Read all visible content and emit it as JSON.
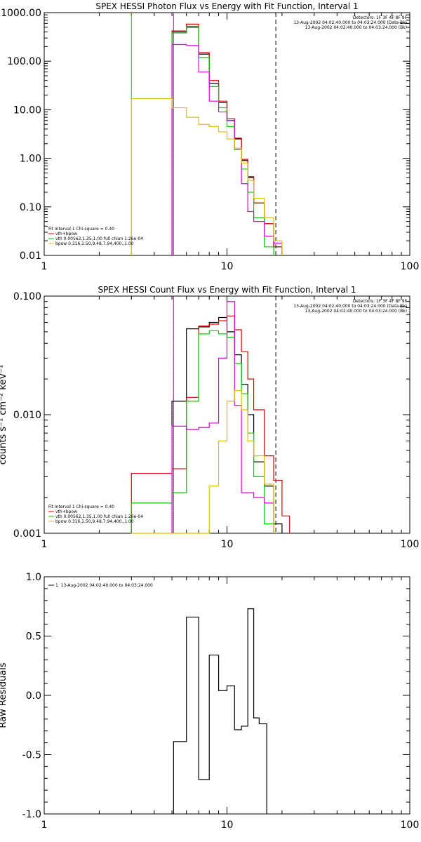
{
  "colors": {
    "data": "#000000",
    "total": "#e00000",
    "vth": "#00d000",
    "bpow": "#e0c000",
    "bkg": "#e000e0"
  },
  "chart_data": [
    {
      "type": "line",
      "step": true,
      "scale": "loglog",
      "title": "SPEX HESSI Photon Flux vs Energy with Fit Function, Interval 1",
      "xlim": [
        1,
        100
      ],
      "ylim": [
        0.01,
        1000
      ],
      "xticks": [
        1,
        10,
        100
      ],
      "xtick_labels": [
        "1",
        "10",
        "100"
      ],
      "yticks": [
        0.01,
        0.1,
        1,
        10,
        100,
        1000
      ],
      "ytick_labels": [
        "0.01",
        "0.10",
        "1.00",
        "10.00",
        "100.00",
        "1000.00"
      ],
      "info_lines": [
        "Detectors: 1F 3F 4F 8F 9F",
        "13-Aug-2002 04:02:40.000 to 04:03:24.000 (Data-Bk)",
        "13-Aug-2002 04:02:40.000 to 04:03:24.000 (Bk)"
      ],
      "legend_lines": [
        "Fit Interval 1    Chi-square = 0.40",
        "vth+bpow",
        "vth 0.00562,1.35,1.00  full chian 1.26e-04",
        "bpow 0.316,1.50,9.48,7.94,400.,1.00"
      ],
      "vlines": [
        {
          "x": 3,
          "color": "vth",
          "style": "solid"
        },
        {
          "x": 5.1,
          "color": "vth",
          "style": "dotted"
        },
        {
          "x": 5.1,
          "color": "bkg",
          "style": "solid"
        },
        {
          "x": 18.5,
          "color": "data",
          "style": "dashed"
        }
      ],
      "edges": [
        3,
        5,
        6,
        7,
        8,
        9,
        10,
        11,
        12,
        13,
        14,
        16,
        18,
        20,
        22
      ],
      "series": [
        {
          "color": "data",
          "start": 1,
          "values": [
            400,
            500,
            140,
            35,
            14,
            6,
            2.5,
            0.9,
            0.4,
            0.12,
            0.045,
            0.015
          ]
        },
        {
          "color": "total",
          "start": 1,
          "values": [
            420,
            580,
            150,
            40,
            15,
            6.5,
            2.6,
            0.95,
            0.42,
            0.12,
            0.045,
            0.015
          ]
        },
        {
          "color": "vth",
          "start": 1,
          "values": [
            380,
            520,
            120,
            30,
            11,
            4.5,
            1.5,
            0.6,
            0.2,
            0.06,
            0.015
          ]
        },
        {
          "color": "bkg",
          "start": 1,
          "values": [
            220,
            210,
            60,
            15,
            9,
            6,
            1.6,
            0.3,
            0.08,
            0.05,
            0.025,
            0.018
          ]
        },
        {
          "color": "bpow",
          "start": 0,
          "values": [
            17,
            11,
            7,
            5,
            4.5,
            3.5,
            2.5,
            1.6,
            0.8,
            0.35,
            0.15,
            0.06,
            0.02
          ]
        }
      ]
    },
    {
      "type": "line",
      "step": true,
      "scale": "loglog",
      "title": "SPEX HESSI Count Flux vs Energy with Fit Function, Interval 1",
      "ylabel": "counts s⁻¹ cm⁻² keV⁻¹",
      "xlim": [
        1,
        100
      ],
      "ylim": [
        0.001,
        0.1
      ],
      "xticks": [
        1,
        10,
        100
      ],
      "xtick_labels": [
        "1",
        "10",
        "100"
      ],
      "yticks": [
        0.001,
        0.01,
        0.1
      ],
      "ytick_labels": [
        "0.001",
        "0.010",
        "0.100"
      ],
      "info_lines": [
        "Detectors: 1F 3F 4F 8F 9F",
        "13-Aug-2002 04:02:40.000 to 04:03:24.000 (Data-Bk)",
        "13-Aug-2002 04:02:40.000 to 04:03:24.000 (Bk)"
      ],
      "legend_lines": [
        "Fit Interval 1    Chi-square = 0.40",
        "vth+bpow",
        "vth 0.00562,1.35,1.00  full chian 1.26e-04",
        "bpow 0.316,1.50,9.48,7.94,400.,1.00"
      ],
      "vlines": [
        {
          "x": 5.1,
          "color": "data",
          "style": "dotted"
        },
        {
          "x": 5.1,
          "color": "bkg",
          "style": "solid"
        },
        {
          "x": 18.5,
          "color": "data",
          "style": "dashed"
        }
      ],
      "edges": [
        3,
        5,
        6,
        7,
        8,
        9,
        10,
        11,
        12,
        13,
        14,
        16,
        18,
        20,
        22
      ],
      "series": [
        {
          "color": "data",
          "start": 1,
          "values": [
            0.013,
            0.053,
            0.055,
            0.06,
            0.066,
            0.05,
            0.032,
            0.018,
            0.01,
            0.004,
            0.0025,
            0.0012
          ]
        },
        {
          "color": "total",
          "start": 0,
          "values": [
            0.0032,
            0.0035,
            0.014,
            0.056,
            0.058,
            0.062,
            0.068,
            0.052,
            0.034,
            0.02,
            0.011,
            0.0045,
            0.0028,
            0.0014
          ]
        },
        {
          "color": "vth",
          "start": 0,
          "values": [
            0.0018,
            0.0022,
            0.013,
            0.048,
            0.051,
            0.048,
            0.045,
            0.027,
            0.015,
            0.007,
            0.003,
            0.0012
          ]
        },
        {
          "color": "bkg",
          "start": 1,
          "values": [
            0.008,
            0.0075,
            0.0078,
            0.0085,
            0.03,
            0.09,
            0.012,
            0.0022,
            0.0022,
            0.002,
            0.0018
          ]
        },
        {
          "color": "bpow",
          "start": 0,
          "values": [
            0.001,
            0.001,
            0.0007,
            0.0008,
            0.0025,
            0.006,
            0.013,
            0.016,
            0.011,
            0.006,
            0.0045,
            0.0026
          ]
        }
      ]
    },
    {
      "type": "line",
      "step": true,
      "scale": "logx",
      "ylabel": "Raw Residuals",
      "xlim": [
        1,
        100
      ],
      "ylim": [
        -1,
        1
      ],
      "xticks": [
        1,
        10,
        100
      ],
      "xtick_labels": [
        "1",
        "10",
        "100"
      ],
      "yticks": [
        -1,
        -0.5,
        0,
        0.5,
        1
      ],
      "ytick_labels": [
        "-1.0",
        "-0.5",
        "0.0",
        "0.5",
        "1.0"
      ],
      "legend_lines": [
        "1. 13-Aug-2002 04:02:40.000 to 04:03:24.000"
      ],
      "edges": [
        5.1,
        6,
        7,
        8,
        9,
        10,
        11,
        12,
        13,
        14,
        15,
        16.5,
        18.5
      ],
      "series": [
        {
          "color": "data",
          "start": 0,
          "from": -1,
          "to": -1,
          "values": [
            -0.39,
            0.66,
            -0.71,
            0.34,
            0.04,
            0.08,
            -0.29,
            -0.26,
            0.73,
            -0.19,
            -0.24
          ]
        }
      ]
    }
  ]
}
